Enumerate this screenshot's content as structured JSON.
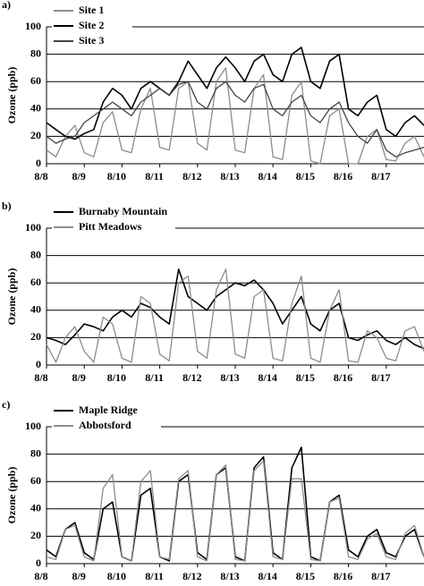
{
  "chart_data": [
    {
      "type": "line",
      "panel_label": "a)",
      "y_label": "Ozone (ppb)",
      "legend": "upper left",
      "grid": true,
      "xlim": [
        0,
        10
      ],
      "ylim": [
        0,
        100
      ],
      "yticks": [
        0,
        20,
        40,
        60,
        80,
        100
      ],
      "xticks": [
        {
          "value": 0,
          "label": "8/8"
        },
        {
          "value": 1,
          "label": "8/9"
        },
        {
          "value": 2,
          "label": "8/10"
        },
        {
          "value": 3,
          "label": "8/11"
        },
        {
          "value": 4,
          "label": "8/12"
        },
        {
          "value": 5,
          "label": "8/13"
        },
        {
          "value": 6,
          "label": "8/14"
        },
        {
          "value": 7,
          "label": "8/15"
        },
        {
          "value": 8,
          "label": "8/16"
        },
        {
          "value": 9,
          "label": "8/17"
        }
      ],
      "x": [
        0,
        0.25,
        0.5,
        0.75,
        1,
        1.25,
        1.5,
        1.75,
        2,
        2.25,
        2.5,
        2.75,
        3,
        3.25,
        3.5,
        3.75,
        4,
        4.25,
        4.5,
        4.75,
        5,
        5.25,
        5.5,
        5.75,
        6,
        6.25,
        6.5,
        6.75,
        7,
        7.25,
        7.5,
        7.75,
        8,
        8.25,
        8.5,
        8.75,
        9,
        9.25,
        9.5,
        9.75,
        10
      ],
      "series": [
        {
          "name": "Site 1",
          "color": "#8c8c8c",
          "values": [
            10,
            5,
            20,
            28,
            8,
            5,
            30,
            38,
            10,
            8,
            40,
            55,
            12,
            10,
            55,
            60,
            15,
            10,
            60,
            70,
            10,
            8,
            55,
            65,
            5,
            3,
            50,
            60,
            2,
            0,
            35,
            40,
            0,
            0,
            20,
            25,
            3,
            2,
            15,
            20,
            5
          ]
        },
        {
          "name": "Site 2",
          "color": "#000000",
          "values": [
            30,
            25,
            20,
            18,
            22,
            25,
            45,
            55,
            50,
            40,
            55,
            60,
            55,
            50,
            60,
            75,
            65,
            55,
            70,
            78,
            70,
            60,
            75,
            80,
            65,
            60,
            80,
            85,
            60,
            55,
            75,
            80,
            40,
            35,
            45,
            50,
            25,
            20,
            30,
            35,
            28
          ]
        },
        {
          "name": "Site 3",
          "color": "#444444",
          "values": [
            20,
            15,
            18,
            20,
            30,
            35,
            40,
            45,
            40,
            35,
            45,
            50,
            55,
            50,
            58,
            60,
            45,
            40,
            55,
            60,
            50,
            45,
            55,
            58,
            40,
            35,
            45,
            50,
            35,
            30,
            40,
            45,
            30,
            20,
            15,
            25,
            10,
            5,
            8,
            10,
            12
          ]
        }
      ]
    },
    {
      "type": "line",
      "panel_label": "b)",
      "y_label": "Ozone (ppb)",
      "legend": "upper left",
      "grid": true,
      "xlim": [
        0,
        10
      ],
      "ylim": [
        0,
        100
      ],
      "yticks": [
        0,
        20,
        40,
        60,
        80,
        100
      ],
      "xticks": [
        {
          "value": 0,
          "label": "8/8"
        },
        {
          "value": 1,
          "label": "8/9"
        },
        {
          "value": 2,
          "label": "8/10"
        },
        {
          "value": 3,
          "label": "8/11"
        },
        {
          "value": 4,
          "label": "8/12"
        },
        {
          "value": 5,
          "label": "8/13"
        },
        {
          "value": 6,
          "label": "8/14"
        },
        {
          "value": 7,
          "label": "8/15"
        },
        {
          "value": 8,
          "label": "8/16"
        },
        {
          "value": 9,
          "label": "8/17"
        }
      ],
      "x": [
        0,
        0.25,
        0.5,
        0.75,
        1,
        1.25,
        1.5,
        1.75,
        2,
        2.25,
        2.5,
        2.75,
        3,
        3.25,
        3.5,
        3.75,
        4,
        4.25,
        4.5,
        4.75,
        5,
        5.25,
        5.5,
        5.75,
        6,
        6.25,
        6.5,
        6.75,
        7,
        7.25,
        7.5,
        7.75,
        8,
        8.25,
        8.5,
        8.75,
        9,
        9.25,
        9.5,
        9.75,
        10
      ],
      "series": [
        {
          "name": "Burnaby Mountain",
          "color": "#000000",
          "values": [
            20,
            18,
            15,
            22,
            30,
            28,
            25,
            35,
            40,
            35,
            45,
            42,
            35,
            30,
            70,
            50,
            45,
            40,
            50,
            55,
            60,
            58,
            62,
            55,
            45,
            30,
            40,
            50,
            30,
            25,
            40,
            45,
            20,
            18,
            22,
            25,
            18,
            15,
            20,
            15,
            12
          ]
        },
        {
          "name": "Pitt Meadows",
          "color": "#8c8c8c",
          "values": [
            15,
            2,
            20,
            28,
            10,
            2,
            35,
            30,
            5,
            2,
            50,
            45,
            8,
            3,
            60,
            65,
            10,
            5,
            55,
            70,
            8,
            5,
            50,
            55,
            5,
            3,
            45,
            65,
            5,
            2,
            40,
            55,
            3,
            2,
            25,
            20,
            5,
            3,
            25,
            28,
            10
          ]
        }
      ]
    },
    {
      "type": "line",
      "panel_label": "c)",
      "y_label": "Ozone (ppb)",
      "legend": "upper left",
      "grid": true,
      "xlim": [
        0,
        10
      ],
      "ylim": [
        0,
        100
      ],
      "yticks": [
        0,
        20,
        40,
        60,
        80,
        100
      ],
      "xticks": [
        {
          "value": 0,
          "label": "8/8"
        },
        {
          "value": 1,
          "label": "8/9"
        },
        {
          "value": 2,
          "label": "8/10"
        },
        {
          "value": 3,
          "label": "8/11"
        },
        {
          "value": 4,
          "label": "8/12"
        },
        {
          "value": 5,
          "label": "8/13"
        },
        {
          "value": 6,
          "label": "8/14"
        },
        {
          "value": 7,
          "label": "8/15"
        },
        {
          "value": 8,
          "label": "8/16"
        },
        {
          "value": 9,
          "label": "8/17"
        }
      ],
      "x": [
        0,
        0.25,
        0.5,
        0.75,
        1,
        1.25,
        1.5,
        1.75,
        2,
        2.25,
        2.5,
        2.75,
        3,
        3.25,
        3.5,
        3.75,
        4,
        4.25,
        4.5,
        4.75,
        5,
        5.25,
        5.5,
        5.75,
        6,
        6.25,
        6.5,
        6.75,
        7,
        7.25,
        7.5,
        7.75,
        8,
        8.25,
        8.5,
        8.75,
        9,
        9.25,
        9.5,
        9.75,
        10
      ],
      "series": [
        {
          "name": "Maple Ridge",
          "color": "#000000",
          "values": [
            10,
            5,
            25,
            30,
            8,
            3,
            40,
            45,
            5,
            2,
            50,
            55,
            5,
            2,
            60,
            65,
            8,
            3,
            65,
            70,
            5,
            2,
            70,
            78,
            8,
            3,
            70,
            85,
            5,
            2,
            45,
            50,
            10,
            5,
            20,
            25,
            8,
            5,
            20,
            25,
            5
          ]
        },
        {
          "name": "Abbotsford",
          "color": "#8c8c8c",
          "values": [
            5,
            3,
            25,
            28,
            5,
            2,
            55,
            65,
            5,
            2,
            60,
            68,
            5,
            3,
            62,
            68,
            5,
            2,
            65,
            72,
            3,
            2,
            68,
            75,
            5,
            3,
            62,
            62,
            3,
            2,
            45,
            48,
            5,
            3,
            18,
            22,
            5,
            3,
            22,
            28,
            5
          ]
        }
      ]
    }
  ]
}
